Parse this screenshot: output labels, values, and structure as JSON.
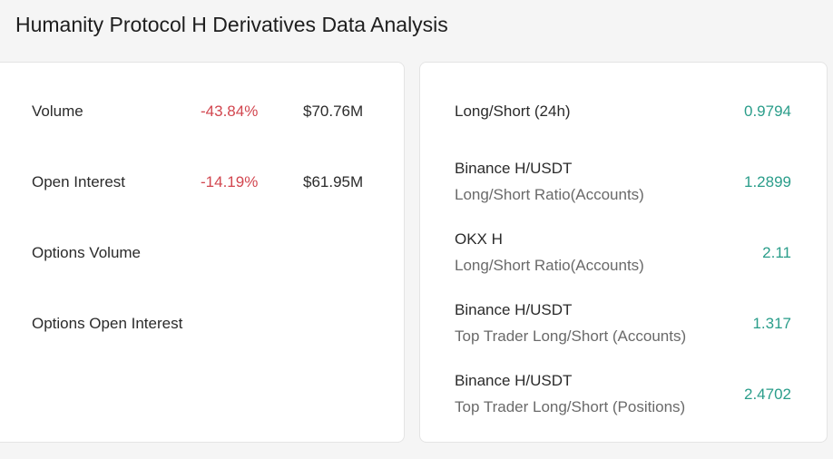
{
  "header": {
    "title": "Humanity Protocol H Derivatives Data Analysis"
  },
  "left": {
    "rows": [
      {
        "label": "Volume",
        "change": "-43.84%",
        "value": "$70.76M"
      },
      {
        "label": "Open Interest",
        "change": "-14.19%",
        "value": "$61.95M"
      },
      {
        "label": "Options Volume"
      },
      {
        "label": "Options Open Interest"
      }
    ]
  },
  "right": {
    "rows": [
      {
        "label": "Long/Short (24h)",
        "value": "0.9794"
      },
      {
        "label": "Binance H/USDT",
        "sublabel": "Long/Short Ratio(Accounts)",
        "value": "1.2899"
      },
      {
        "label": "OKX H",
        "sublabel": "Long/Short Ratio(Accounts)",
        "value": "2.11"
      },
      {
        "label": "Binance H/USDT",
        "sublabel": "Top Trader Long/Short (Accounts)",
        "value": "1.317"
      },
      {
        "label": "Binance H/USDT",
        "sublabel": "Top Trader Long/Short (Positions)",
        "value": "2.4702"
      }
    ]
  }
}
